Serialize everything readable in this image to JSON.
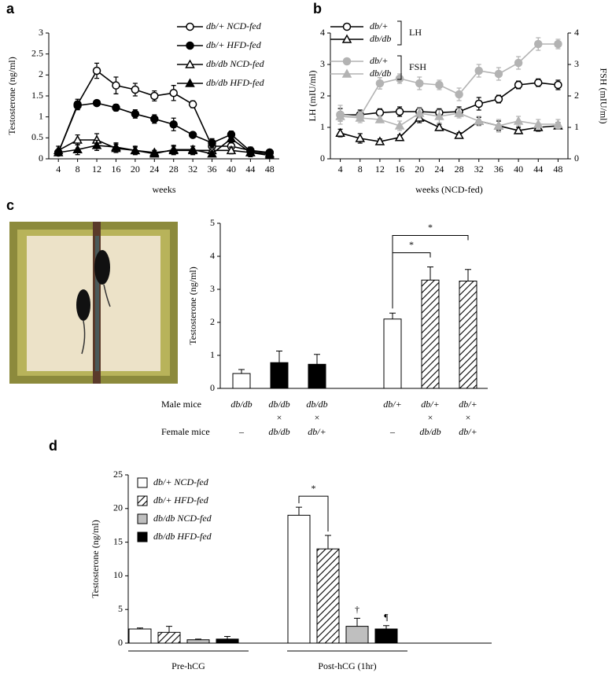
{
  "chart_data": [
    {
      "type": "line",
      "panel": "a",
      "x": [
        4,
        8,
        12,
        16,
        20,
        24,
        28,
        32,
        36,
        40,
        44,
        48
      ],
      "xlim": [
        2,
        50
      ],
      "xticks": [
        4,
        8,
        12,
        16,
        20,
        24,
        28,
        32,
        36,
        40,
        44,
        48
      ],
      "xlabel": "weeks",
      "ylabel": "Testosterone (ng/ml)",
      "ylim": [
        0,
        3
      ],
      "yticks": [
        0,
        0.5,
        1,
        1.5,
        2,
        2.5,
        3
      ],
      "series": [
        {
          "name": "db/+ NCD-fed",
          "color": "#000000",
          "marker": "circle",
          "filled": false,
          "values": [
            0.15,
            1.3,
            2.1,
            1.75,
            1.65,
            1.5,
            1.57,
            1.3,
            0.3,
            0.3,
            0.2,
            0.15
          ],
          "errors": [
            0.05,
            0.12,
            0.18,
            0.2,
            0.15,
            0.12,
            0.18,
            0.08,
            0.1,
            0.1,
            0.08,
            0.05
          ]
        },
        {
          "name": "db/+ HFD-fed",
          "color": "#000000",
          "marker": "circle",
          "filled": true,
          "values": [
            0.15,
            1.27,
            1.33,
            1.22,
            1.07,
            0.95,
            0.82,
            0.57,
            0.38,
            0.58,
            0.18,
            0.15
          ],
          "errors": [
            0.05,
            0.1,
            0.05,
            0.08,
            0.1,
            0.1,
            0.15,
            0.05,
            0.1,
            0.08,
            0.05,
            0.05
          ]
        },
        {
          "name": "db/db NCD-fed",
          "color": "#000000",
          "marker": "triangle",
          "filled": false,
          "values": [
            0.2,
            0.45,
            0.45,
            0.25,
            0.2,
            0.15,
            0.2,
            0.2,
            0.2,
            0.2,
            0.15,
            0.12
          ],
          "errors": [
            0.1,
            0.12,
            0.15,
            0.1,
            0.08,
            0.05,
            0.1,
            0.1,
            0.08,
            0.08,
            0.1,
            0.08
          ]
        },
        {
          "name": "db/db HFD-fed",
          "color": "#000000",
          "marker": "triangle",
          "filled": true,
          "values": [
            0.15,
            0.22,
            0.32,
            0.28,
            0.2,
            0.12,
            0.22,
            0.22,
            0.12,
            0.48,
            0.15,
            0.08
          ],
          "errors": [
            0.05,
            0.12,
            0.12,
            0.1,
            0.1,
            0.05,
            0.1,
            0.08,
            0.05,
            0.1,
            0.08,
            0.05
          ]
        }
      ]
    },
    {
      "type": "line",
      "panel": "b",
      "x": [
        4,
        8,
        12,
        16,
        20,
        24,
        28,
        32,
        36,
        40,
        44,
        48
      ],
      "xlim": [
        2,
        50
      ],
      "xticks": [
        4,
        8,
        12,
        16,
        20,
        24,
        28,
        32,
        36,
        40,
        44,
        48
      ],
      "xlabel": "weeks (NCD-fed)",
      "ylabel": "LH (mIU/ml)",
      "ylim": [
        0,
        4
      ],
      "yticks": [
        0,
        1,
        2,
        3,
        4
      ],
      "y2label": "FSH (mIU/ml)",
      "y2lim": [
        0,
        4
      ],
      "y2ticks": [
        0,
        1,
        2,
        3,
        4
      ],
      "series": [
        {
          "name": "db/+",
          "group": "LH",
          "color": "#000000",
          "marker": "circle",
          "filled": false,
          "values": [
            1.4,
            1.4,
            1.47,
            1.5,
            1.5,
            1.47,
            1.5,
            1.75,
            1.9,
            2.35,
            2.42,
            2.35
          ],
          "errors": [
            0.2,
            0.15,
            0.12,
            0.15,
            0.12,
            0.12,
            0.15,
            0.2,
            0.12,
            0.12,
            0.12,
            0.15
          ]
        },
        {
          "name": "db/db",
          "group": "LH",
          "color": "#000000",
          "marker": "triangle",
          "filled": false,
          "values": [
            0.82,
            0.65,
            0.55,
            0.68,
            1.3,
            1.0,
            0.75,
            1.2,
            1.05,
            0.9,
            1.0,
            1.05
          ],
          "errors": [
            0.12,
            0.15,
            0.08,
            0.08,
            0.15,
            0.1,
            0.08,
            0.12,
            0.15,
            0.1,
            0.12,
            0.1
          ]
        },
        {
          "name": "db/+",
          "group": "FSH",
          "axis": "y2",
          "color": "#b3b3b3",
          "marker": "circle",
          "filled": true,
          "values": [
            1.4,
            1.35,
            2.4,
            2.55,
            2.4,
            2.35,
            2.05,
            2.8,
            2.7,
            3.05,
            3.65,
            3.65
          ],
          "errors": [
            0.3,
            0.15,
            0.18,
            0.15,
            0.2,
            0.15,
            0.2,
            0.2,
            0.2,
            0.2,
            0.2,
            0.15
          ]
        },
        {
          "name": "db/db",
          "group": "FSH",
          "axis": "y2",
          "color": "#b3b3b3",
          "marker": "triangle",
          "filled": true,
          "values": [
            1.35,
            1.3,
            1.25,
            1.05,
            1.45,
            1.35,
            1.45,
            1.2,
            1.05,
            1.2,
            1.1,
            1.1
          ],
          "errors": [
            0.15,
            0.15,
            0.1,
            0.15,
            0.15,
            0.2,
            0.15,
            0.15,
            0.2,
            0.15,
            0.15,
            0.15
          ]
        }
      ]
    },
    {
      "type": "bar",
      "panel": "c",
      "ylabel": "Testosterone (ng/ml)",
      "ylim": [
        0,
        5
      ],
      "yticks": [
        0,
        1,
        2,
        3,
        4,
        5
      ],
      "row_labels": [
        "Male mice",
        "Female mice"
      ],
      "male": [
        "db/db",
        "db/db",
        "db/db",
        "db/+",
        "db/+",
        "db/+"
      ],
      "female": [
        "–",
        "db/db",
        "db/+",
        "–",
        "db/db",
        "db/+"
      ],
      "cross": "×",
      "crossed": [
        false,
        true,
        true,
        false,
        true,
        true
      ],
      "values": [
        0.45,
        0.78,
        0.73,
        2.1,
        3.28,
        3.25
      ],
      "errors": [
        0.12,
        0.35,
        0.3,
        0.18,
        0.4,
        0.35
      ],
      "patterns": [
        "white",
        "black",
        "black",
        "white",
        "hatch",
        "hatch"
      ],
      "annotations": [
        {
          "text": "*",
          "from": 3,
          "to": 4
        },
        {
          "text": "*",
          "from": 3,
          "to": 5
        }
      ]
    },
    {
      "type": "bar",
      "panel": "d",
      "ylabel": "Testosterone (ng/ml)",
      "ylim": [
        0,
        25
      ],
      "yticks": [
        0,
        5,
        10,
        15,
        20,
        25
      ],
      "categories": [
        "Pre-hCG",
        "Post-hCG (1hr)"
      ],
      "series": [
        {
          "name": "db/+ NCD-fed",
          "pattern": "white",
          "values": [
            2.1,
            19
          ],
          "errors": [
            0.15,
            1.2
          ]
        },
        {
          "name": "db/+ HFD-fed",
          "pattern": "hatch",
          "values": [
            1.6,
            14
          ],
          "errors": [
            0.9,
            2.0
          ]
        },
        {
          "name": "db/db NCD-fed",
          "pattern": "#bfbfbf",
          "values": [
            0.5,
            2.5
          ],
          "errors": [
            0.1,
            1.2
          ]
        },
        {
          "name": "db/db HFD-fed",
          "pattern": "black",
          "values": [
            0.6,
            2.1
          ],
          "errors": [
            0.4,
            0.5
          ]
        }
      ],
      "annotations": [
        {
          "text": "*",
          "category": 1,
          "series": [
            0,
            1
          ]
        },
        {
          "text": "†",
          "category": 1,
          "series": [
            2
          ]
        },
        {
          "text": "¶",
          "category": 1,
          "series": [
            3
          ]
        }
      ]
    }
  ]
}
